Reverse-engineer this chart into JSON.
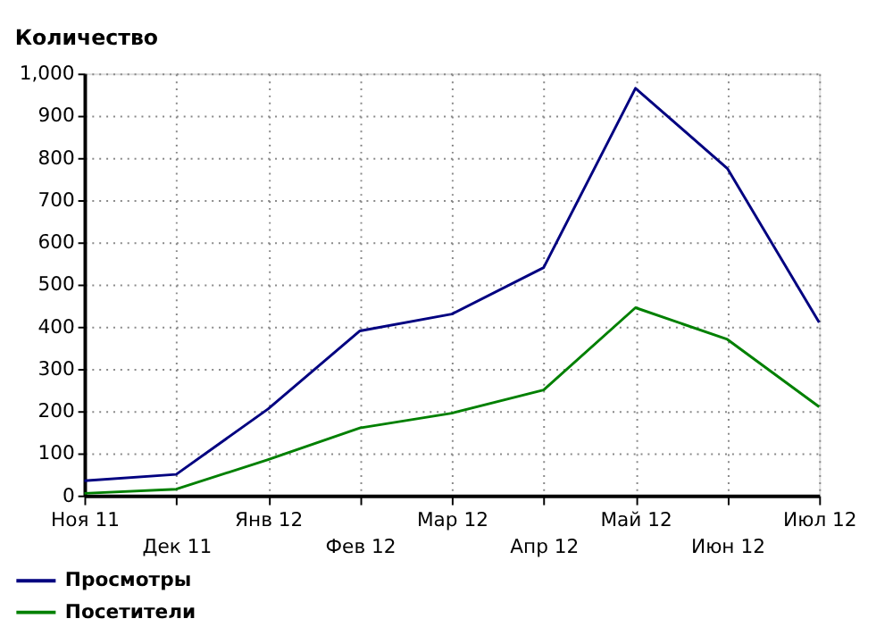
{
  "chart_data": {
    "type": "line",
    "ylabel": "Количество",
    "categories": [
      "Ноя 11",
      "Дек 11",
      "Янв 12",
      "Фев 12",
      "Мар 12",
      "Апр 12",
      "Май 12",
      "Июн 12",
      "Июл 12"
    ],
    "series": [
      {
        "name": "Просмотры",
        "color": "#000080",
        "values": [
          35,
          50,
          205,
          390,
          430,
          540,
          965,
          775,
          410
        ]
      },
      {
        "name": "Посетители",
        "color": "#008000",
        "values": [
          5,
          15,
          85,
          160,
          195,
          250,
          445,
          370,
          210
        ]
      }
    ],
    "ylim": [
      0,
      1000
    ],
    "yticks": [
      0,
      100,
      200,
      300,
      400,
      500,
      600,
      700,
      800,
      900,
      {
        "value": 1000,
        "label": "1,000"
      }
    ],
    "grid": true,
    "legend": "bottom left",
    "marker": "none",
    "line_style": "solid"
  }
}
